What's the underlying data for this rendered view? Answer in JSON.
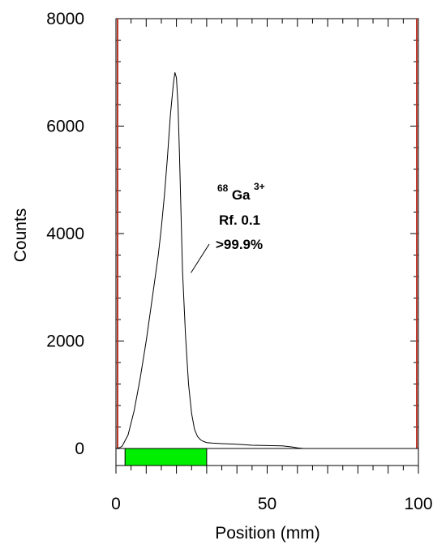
{
  "chart_data": {
    "type": "line",
    "title": "",
    "xlabel": "Position (mm)",
    "ylabel": "Counts",
    "xlim": [
      0,
      100
    ],
    "ylim": [
      0,
      8000
    ],
    "x_ticks": [
      "0",
      "50",
      "100"
    ],
    "y_ticks": [
      "0",
      "2000",
      "4000",
      "6000",
      "8000"
    ],
    "grid": false,
    "series": [
      {
        "name": "",
        "color": "#000000",
        "x": [
          0,
          1,
          2,
          4,
          6,
          8,
          10,
          12,
          14,
          15,
          16,
          17,
          18,
          19,
          19.5,
          20,
          20.5,
          21,
          21.5,
          22,
          23,
          24,
          25,
          26,
          27,
          28,
          29,
          30,
          32,
          35,
          40,
          45,
          50,
          55,
          58,
          60,
          62,
          65,
          70,
          80,
          90,
          100
        ],
        "y": [
          0,
          10,
          40,
          250,
          700,
          1300,
          2000,
          2800,
          3600,
          4100,
          4700,
          5400,
          6200,
          6800,
          7000,
          6900,
          6400,
          5500,
          4400,
          3300,
          2100,
          1200,
          650,
          350,
          220,
          160,
          130,
          110,
          100,
          90,
          80,
          60,
          55,
          50,
          30,
          10,
          0,
          0,
          0,
          0,
          0,
          0
        ]
      }
    ],
    "region_markers": [
      {
        "x": 0,
        "color": "#c0392b"
      },
      {
        "x": 100,
        "color": "#c0392b"
      }
    ],
    "spot_bar": {
      "start": 3,
      "end": 30,
      "color": "#00ee00"
    },
    "annotation": {
      "isotope_mass": "68",
      "element": "Ga",
      "charge": "3+",
      "rf": "Rf. 0.1",
      "purity": ">99.9%",
      "point_x": 24,
      "point_y": 3300
    }
  }
}
